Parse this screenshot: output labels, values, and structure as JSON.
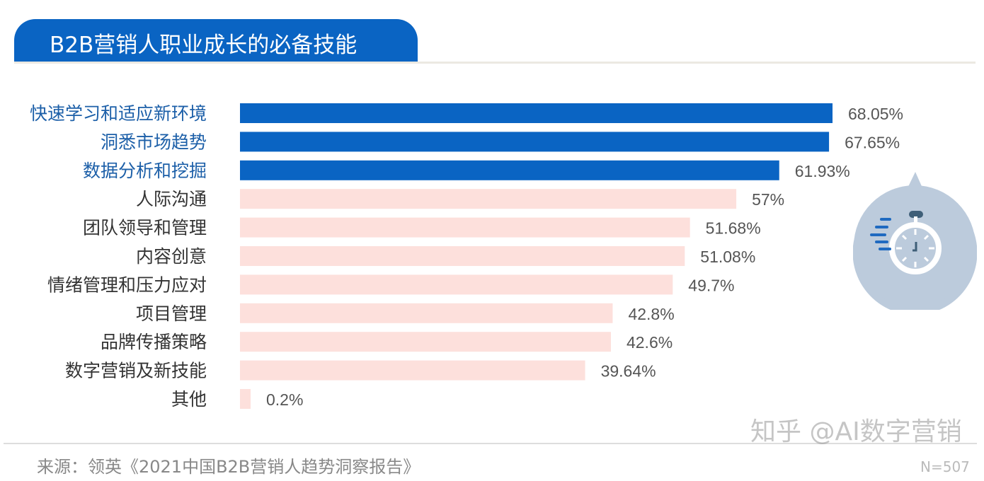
{
  "header": {
    "title": "B2B营销人职业成长的必备技能"
  },
  "chart_data": {
    "type": "bar",
    "orientation": "horizontal",
    "title": "B2B营销人职业成长的必备技能",
    "categories": [
      "快速学习和适应新环境",
      "洞悉市场趋势",
      "数据分析和挖掘",
      "人际沟通",
      "团队领导和管理",
      "内容创意",
      "情绪管理和压力应对",
      "项目管理",
      "品牌传播策略",
      "数字营销及新技能",
      "其他"
    ],
    "values": [
      68.05,
      67.65,
      61.93,
      57,
      51.68,
      51.08,
      49.7,
      42.8,
      42.6,
      39.64,
      0.2
    ],
    "labels": [
      "68.05%",
      "67.65%",
      "61.93%",
      "57%",
      "51.68%",
      "51.08%",
      "49.7%",
      "42.8%",
      "42.6%",
      "39.64%",
      "0.2%"
    ],
    "highlighted_count": 3,
    "colors": {
      "highlight": "#0a64c3",
      "normal": "#fde0dc",
      "highlight_label": "#1c5fa8",
      "label": "#333333",
      "value": "#555555"
    },
    "xlim": [
      0,
      70
    ],
    "grid": false,
    "legend": "none"
  },
  "footer": {
    "source": "来源：领英《2021中国B2B营销人趋势洞察报告》",
    "sample": "N=507",
    "watermark": "知乎 @AI数字营销"
  }
}
